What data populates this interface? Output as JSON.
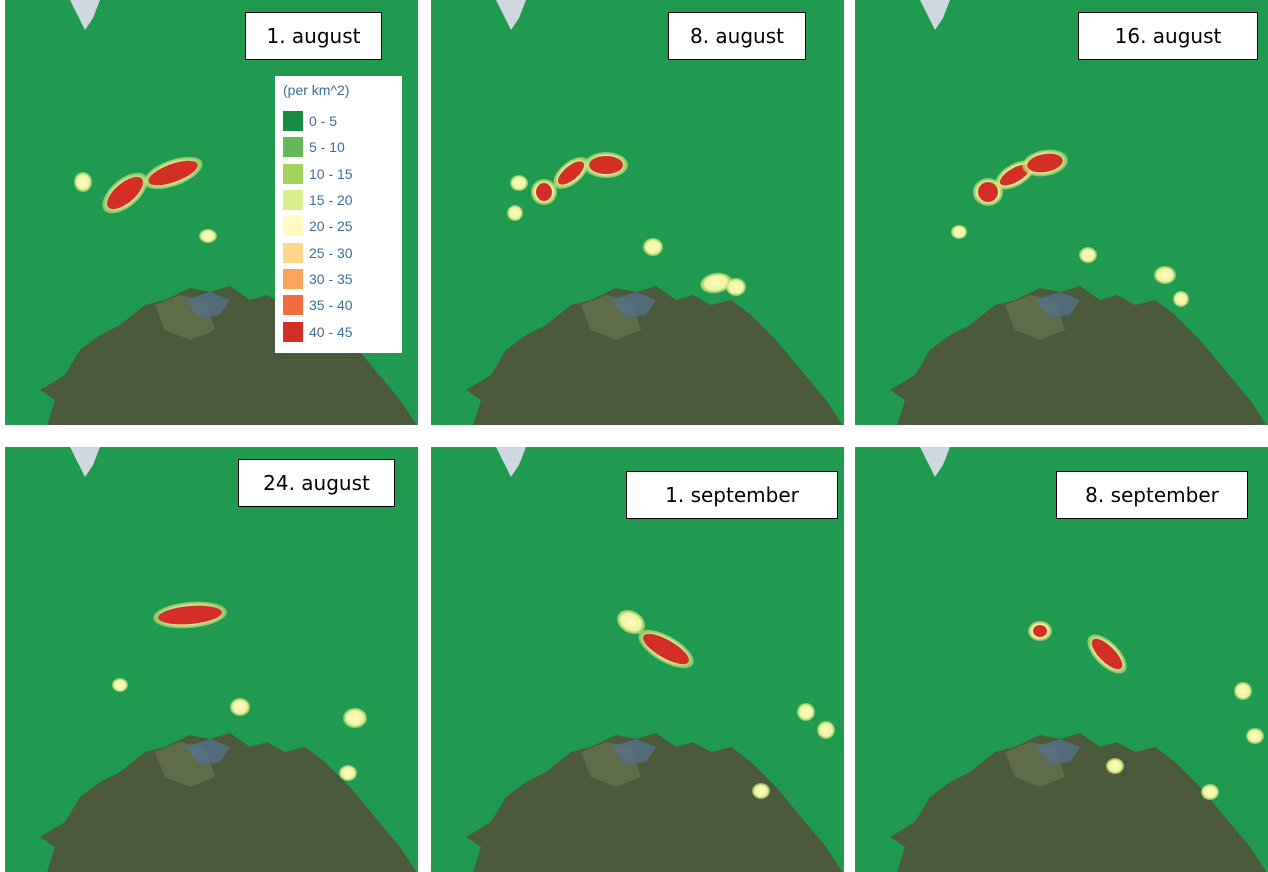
{
  "panels": [
    {
      "label": "1. august"
    },
    {
      "label": "8. august"
    },
    {
      "label": "16. august"
    },
    {
      "label": "24. august"
    },
    {
      "label": "1. september"
    },
    {
      "label": "8. september"
    }
  ],
  "legend": {
    "title": "(per km^2)",
    "entries": [
      {
        "label": "0 - 5",
        "color": "#1a8a47"
      },
      {
        "label": "5 - 10",
        "color": "#66b85a"
      },
      {
        "label": "10 - 15",
        "color": "#a5d25c"
      },
      {
        "label": "15 - 20",
        "color": "#d9ee8c"
      },
      {
        "label": "20 - 25",
        "color": "#fffbc2"
      },
      {
        "label": "25 - 30",
        "color": "#fdd88a"
      },
      {
        "label": "30 - 35",
        "color": "#fba55c"
      },
      {
        "label": "35 - 40",
        "color": "#f26c42"
      },
      {
        "label": "40 - 45",
        "color": "#d42f26"
      }
    ]
  }
}
